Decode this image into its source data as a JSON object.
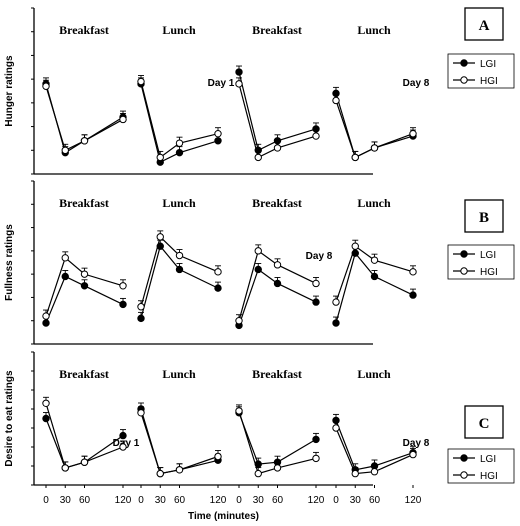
{
  "chart_data": [
    {
      "type": "line",
      "panel": "A",
      "ylabel": "Hunger ratings",
      "ylim": [
        0,
        70
      ],
      "yticks": [
        0,
        10,
        20,
        30,
        40,
        50,
        60,
        70
      ],
      "legend": {
        "entries": [
          "LGI",
          "HGI"
        ],
        "placement": "right"
      },
      "segments": [
        {
          "label": "Breakfast",
          "day": "",
          "x": [
            0,
            30,
            60,
            120
          ],
          "series": [
            {
              "name": "LGI",
              "values": [
                38,
                9,
                14,
                24
              ]
            },
            {
              "name": "HGI",
              "values": [
                37,
                10,
                14,
                23
              ]
            }
          ]
        },
        {
          "label": "Lunch",
          "day": "Day 1",
          "x": [
            0,
            30,
            60,
            120
          ],
          "series": [
            {
              "name": "LGI",
              "values": [
                38,
                5,
                9,
                14
              ]
            },
            {
              "name": "HGI",
              "values": [
                39,
                7,
                13,
                17
              ]
            }
          ]
        },
        {
          "label": "Breakfast",
          "day": "",
          "x": [
            0,
            30,
            60,
            120
          ],
          "series": [
            {
              "name": "LGI",
              "values": [
                43,
                10,
                14,
                19
              ]
            },
            {
              "name": "HGI",
              "values": [
                38,
                7,
                11,
                16
              ]
            }
          ]
        },
        {
          "label": "Lunch",
          "day": "Day 8",
          "x": [
            0,
            30,
            60,
            120
          ],
          "series": [
            {
              "name": "LGI",
              "values": [
                34,
                7,
                11,
                16
              ]
            },
            {
              "name": "HGI",
              "values": [
                31,
                7,
                11,
                17
              ]
            }
          ]
        }
      ]
    },
    {
      "type": "line",
      "panel": "B",
      "ylabel": "Fullness ratings",
      "ylim": [
        0,
        70
      ],
      "yticks": [
        0,
        10,
        20,
        30,
        40,
        50,
        60,
        70
      ],
      "legend": {
        "entries": [
          "LGI",
          "HGI"
        ],
        "placement": "right"
      },
      "segments": [
        {
          "label": "Breakfast",
          "day": "",
          "x": [
            0,
            30,
            60,
            120
          ],
          "series": [
            {
              "name": "LGI",
              "values": [
                9,
                29,
                25,
                17
              ]
            },
            {
              "name": "HGI",
              "values": [
                12,
                37,
                30,
                25
              ]
            }
          ]
        },
        {
          "label": "Lunch",
          "day": "",
          "x": [
            0,
            30,
            60,
            120
          ],
          "series": [
            {
              "name": "LGI",
              "values": [
                11,
                42,
                32,
                24
              ]
            },
            {
              "name": "HGI",
              "values": [
                16,
                46,
                38,
                31
              ]
            }
          ]
        },
        {
          "label": "Breakfast",
          "day": "Day 8",
          "x": [
            0,
            30,
            60,
            120
          ],
          "series": [
            {
              "name": "LGI",
              "values": [
                8,
                32,
                26,
                18
              ]
            },
            {
              "name": "HGI",
              "values": [
                10,
                40,
                34,
                26
              ]
            }
          ]
        },
        {
          "label": "Lunch",
          "day": "",
          "x": [
            0,
            30,
            60,
            120
          ],
          "series": [
            {
              "name": "LGI",
              "values": [
                9,
                39,
                29,
                21
              ]
            },
            {
              "name": "HGI",
              "values": [
                18,
                42,
                36,
                31
              ]
            }
          ]
        }
      ]
    },
    {
      "type": "line",
      "panel": "C",
      "ylabel": "Desire to eat ratings",
      "xlabel": "Time (minutes)",
      "ylim": [
        0,
        70
      ],
      "yticks": [
        0,
        10,
        20,
        30,
        40,
        50,
        60,
        70
      ],
      "legend": {
        "entries": [
          "LGI",
          "HGI"
        ],
        "placement": "right"
      },
      "segments": [
        {
          "label": "Breakfast",
          "day": "Day 1",
          "x": [
            0,
            30,
            60,
            120
          ],
          "series": [
            {
              "name": "LGI",
              "values": [
                35,
                9,
                12,
                26
              ]
            },
            {
              "name": "HGI",
              "values": [
                43,
                9,
                12,
                20
              ]
            }
          ]
        },
        {
          "label": "Lunch",
          "day": "",
          "x": [
            0,
            30,
            60,
            120
          ],
          "series": [
            {
              "name": "LGI",
              "values": [
                40,
                6,
                8,
                13
              ]
            },
            {
              "name": "HGI",
              "values": [
                38,
                6,
                8,
                15
              ]
            }
          ]
        },
        {
          "label": "Breakfast",
          "day": "",
          "x": [
            0,
            30,
            60,
            120
          ],
          "series": [
            {
              "name": "LGI",
              "values": [
                38,
                11,
                12,
                24
              ]
            },
            {
              "name": "HGI",
              "values": [
                39,
                6,
                9,
                14
              ]
            }
          ]
        },
        {
          "label": "Lunch",
          "day": "Day 8",
          "x": [
            0,
            30,
            60,
            120
          ],
          "series": [
            {
              "name": "LGI",
              "values": [
                34,
                8,
                10,
                17
              ]
            },
            {
              "name": "HGI",
              "values": [
                30,
                6,
                7,
                16
              ]
            }
          ]
        }
      ]
    }
  ]
}
